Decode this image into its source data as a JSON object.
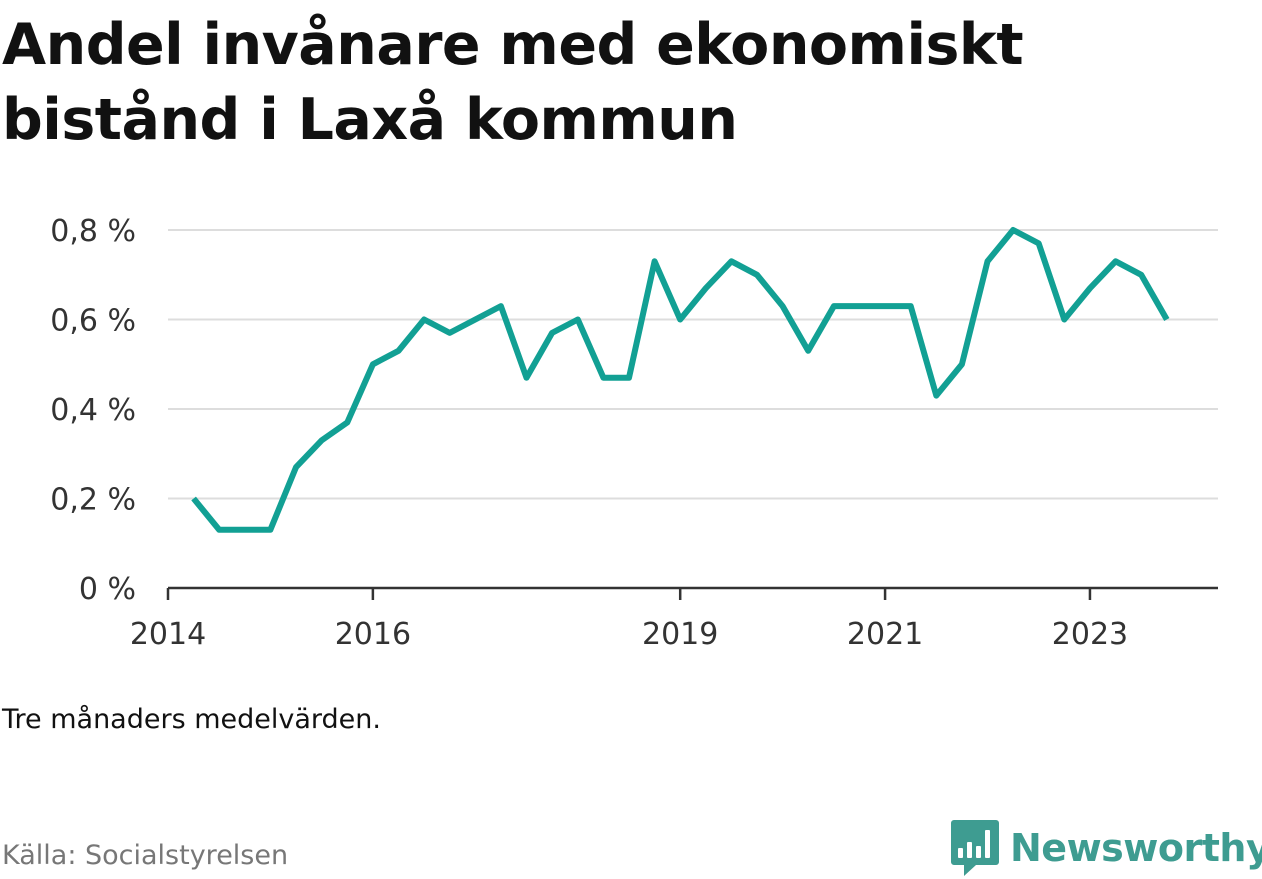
{
  "title": "Andel invånare med ekonomiskt bistånd i Laxå kommun",
  "note": "Tre månaders medelvärden.",
  "source": "Källa: Socialstyrelsen",
  "brand": {
    "name": "Newsworthy",
    "icon": "newsworthy-logo-icon",
    "color": "#3e9c91"
  },
  "colors": {
    "line": "#12a094",
    "grid": "#dddddd",
    "axis": "#333333"
  },
  "chart_data": {
    "type": "line",
    "title": "Andel invånare med ekonomiskt bistånd i Laxå kommun",
    "xlabel": "",
    "ylabel": "",
    "ylim": [
      0,
      0.8
    ],
    "yticks": [
      0,
      0.2,
      0.4,
      0.6,
      0.8
    ],
    "ytick_labels": [
      "0 %",
      "0,2 %",
      "0,4 %",
      "0,6 %",
      "0,8 %"
    ],
    "xlim": [
      "2014-01",
      "2024-04"
    ],
    "xticks": [
      "2014-01",
      "2016-01",
      "2019-01",
      "2021-01",
      "2023-01"
    ],
    "xtick_labels": [
      "2014",
      "2016",
      "2019",
      "2021",
      "2023"
    ],
    "grid": true,
    "legend": "none",
    "series": [
      {
        "x": [
          "2014-04",
          "2014-07",
          "2014-10",
          "2015-01",
          "2015-04",
          "2015-07",
          "2015-10",
          "2016-01",
          "2016-04",
          "2016-07",
          "2016-10",
          "2017-01",
          "2017-04",
          "2017-07",
          "2017-10",
          "2018-01",
          "2018-04",
          "2018-07",
          "2018-10",
          "2019-01",
          "2019-04",
          "2019-07",
          "2019-10",
          "2020-01",
          "2020-04",
          "2020-07",
          "2020-10",
          "2021-01",
          "2021-04",
          "2021-07",
          "2021-10",
          "2022-01",
          "2022-04",
          "2022-07",
          "2022-10",
          "2023-01",
          "2023-04",
          "2023-07",
          "2023-10"
        ],
        "values": [
          0.2,
          0.13,
          0.13,
          0.13,
          0.27,
          0.33,
          0.37,
          0.5,
          0.53,
          0.6,
          0.57,
          0.6,
          0.63,
          0.47,
          0.57,
          0.6,
          0.47,
          0.47,
          0.73,
          0.6,
          0.67,
          0.73,
          0.7,
          0.63,
          0.53,
          0.63,
          0.63,
          0.63,
          0.63,
          0.43,
          0.5,
          0.73,
          0.8,
          0.77,
          0.6,
          0.67,
          0.73,
          0.7,
          0.6
        ]
      }
    ]
  }
}
